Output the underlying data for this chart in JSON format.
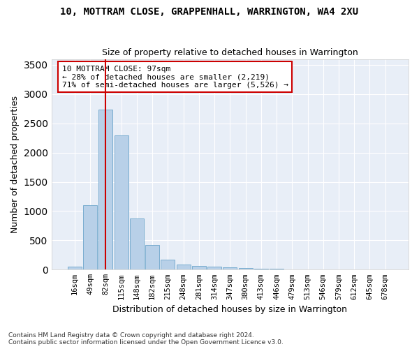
{
  "title": "10, MOTTRAM CLOSE, GRAPPENHALL, WARRINGTON, WA4 2XU",
  "subtitle": "Size of property relative to detached houses in Warrington",
  "xlabel": "Distribution of detached houses by size in Warrington",
  "ylabel": "Number of detached properties",
  "bar_color": "#b8d0e8",
  "bar_edge_color": "#7aadd0",
  "bar_categories": [
    "16sqm",
    "49sqm",
    "82sqm",
    "115sqm",
    "148sqm",
    "182sqm",
    "215sqm",
    "248sqm",
    "281sqm",
    "314sqm",
    "347sqm",
    "380sqm",
    "413sqm",
    "446sqm",
    "479sqm",
    "513sqm",
    "546sqm",
    "579sqm",
    "612sqm",
    "645sqm",
    "678sqm"
  ],
  "bar_values": [
    50,
    1100,
    2730,
    2290,
    880,
    420,
    170,
    90,
    60,
    50,
    35,
    30,
    10,
    20,
    0,
    0,
    0,
    0,
    0,
    0,
    0
  ],
  "red_line_index": 2,
  "annotation_line1": "10 MOTTRAM CLOSE: 97sqm",
  "annotation_line2": "← 28% of detached houses are smaller (2,219)",
  "annotation_line3": "71% of semi-detached houses are larger (5,526) →",
  "annotation_box_color": "#ffffff",
  "annotation_box_edge": "#cc0000",
  "red_line_color": "#cc0000",
  "ylim": [
    0,
    3600
  ],
  "yticks": [
    0,
    500,
    1000,
    1500,
    2000,
    2500,
    3000,
    3500
  ],
  "bg_color": "#e8eef7",
  "grid_color": "#ffffff",
  "footnote1": "Contains HM Land Registry data © Crown copyright and database right 2024.",
  "footnote2": "Contains public sector information licensed under the Open Government Licence v3.0."
}
